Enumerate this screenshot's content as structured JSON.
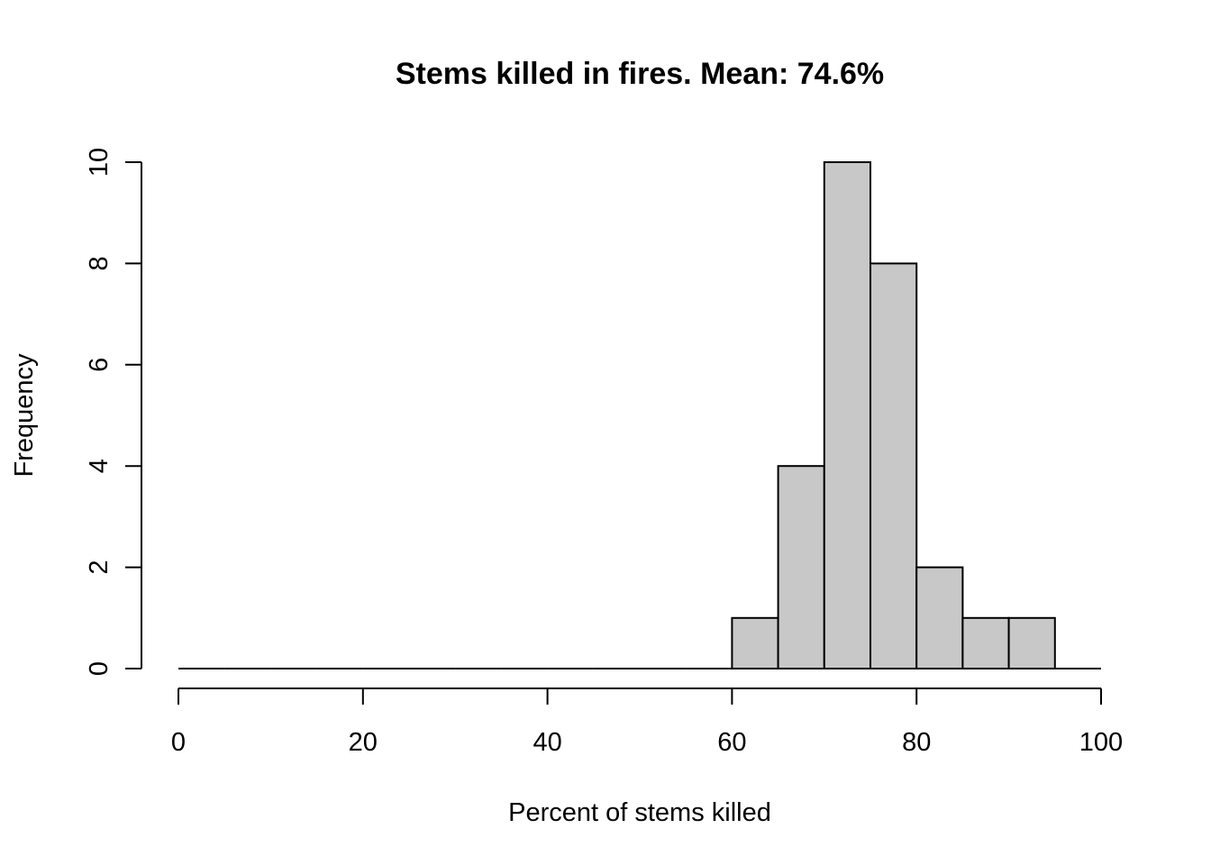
{
  "chart_data": {
    "type": "bar",
    "subtype": "histogram",
    "title": "Stems killed in fires. Mean: 74.6%",
    "xlabel": "Percent of stems killed",
    "ylabel": "Frequency",
    "bin_edges": [
      0,
      5,
      10,
      15,
      20,
      25,
      30,
      35,
      40,
      45,
      50,
      55,
      60,
      65,
      70,
      75,
      80,
      85,
      90,
      95,
      100
    ],
    "values": [
      0,
      0,
      0,
      0,
      0,
      0,
      0,
      0,
      0,
      0,
      0,
      0,
      1,
      4,
      10,
      8,
      2,
      1,
      1,
      0
    ],
    "xlim": [
      0,
      100
    ],
    "ylim": [
      0,
      10
    ],
    "x_ticks": [
      0,
      20,
      40,
      60,
      80,
      100
    ],
    "y_ticks": [
      0,
      2,
      4,
      6,
      8,
      10
    ],
    "bar_color": "#c8c8c8",
    "grid": false,
    "legend": "none"
  }
}
